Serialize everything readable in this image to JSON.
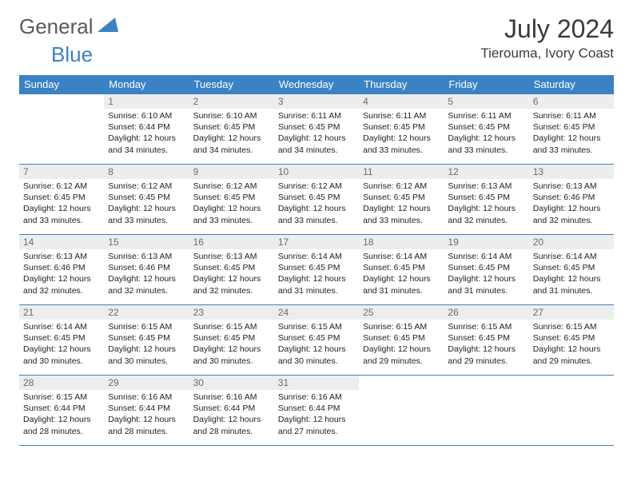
{
  "logo": {
    "general": "General",
    "blue": "Blue"
  },
  "title": "July 2024",
  "location": "Tierouma, Ivory Coast",
  "colors": {
    "header_bg": "#3b82c4",
    "header_text": "#ffffff",
    "daynum_bg": "#eceeee",
    "daynum_text": "#6a6a6a",
    "border": "#3b82c4",
    "body_text": "#222222",
    "logo_gray": "#5a5a5a",
    "logo_blue": "#3b82c4"
  },
  "weekdays": [
    "Sunday",
    "Monday",
    "Tuesday",
    "Wednesday",
    "Thursday",
    "Friday",
    "Saturday"
  ],
  "start_offset": 1,
  "days": [
    {
      "n": 1,
      "sr": "6:10 AM",
      "ss": "6:44 PM",
      "dl": "12 hours and 34 minutes."
    },
    {
      "n": 2,
      "sr": "6:10 AM",
      "ss": "6:45 PM",
      "dl": "12 hours and 34 minutes."
    },
    {
      "n": 3,
      "sr": "6:11 AM",
      "ss": "6:45 PM",
      "dl": "12 hours and 34 minutes."
    },
    {
      "n": 4,
      "sr": "6:11 AM",
      "ss": "6:45 PM",
      "dl": "12 hours and 33 minutes."
    },
    {
      "n": 5,
      "sr": "6:11 AM",
      "ss": "6:45 PM",
      "dl": "12 hours and 33 minutes."
    },
    {
      "n": 6,
      "sr": "6:11 AM",
      "ss": "6:45 PM",
      "dl": "12 hours and 33 minutes."
    },
    {
      "n": 7,
      "sr": "6:12 AM",
      "ss": "6:45 PM",
      "dl": "12 hours and 33 minutes."
    },
    {
      "n": 8,
      "sr": "6:12 AM",
      "ss": "6:45 PM",
      "dl": "12 hours and 33 minutes."
    },
    {
      "n": 9,
      "sr": "6:12 AM",
      "ss": "6:45 PM",
      "dl": "12 hours and 33 minutes."
    },
    {
      "n": 10,
      "sr": "6:12 AM",
      "ss": "6:45 PM",
      "dl": "12 hours and 33 minutes."
    },
    {
      "n": 11,
      "sr": "6:12 AM",
      "ss": "6:45 PM",
      "dl": "12 hours and 33 minutes."
    },
    {
      "n": 12,
      "sr": "6:13 AM",
      "ss": "6:45 PM",
      "dl": "12 hours and 32 minutes."
    },
    {
      "n": 13,
      "sr": "6:13 AM",
      "ss": "6:46 PM",
      "dl": "12 hours and 32 minutes."
    },
    {
      "n": 14,
      "sr": "6:13 AM",
      "ss": "6:46 PM",
      "dl": "12 hours and 32 minutes."
    },
    {
      "n": 15,
      "sr": "6:13 AM",
      "ss": "6:46 PM",
      "dl": "12 hours and 32 minutes."
    },
    {
      "n": 16,
      "sr": "6:13 AM",
      "ss": "6:45 PM",
      "dl": "12 hours and 32 minutes."
    },
    {
      "n": 17,
      "sr": "6:14 AM",
      "ss": "6:45 PM",
      "dl": "12 hours and 31 minutes."
    },
    {
      "n": 18,
      "sr": "6:14 AM",
      "ss": "6:45 PM",
      "dl": "12 hours and 31 minutes."
    },
    {
      "n": 19,
      "sr": "6:14 AM",
      "ss": "6:45 PM",
      "dl": "12 hours and 31 minutes."
    },
    {
      "n": 20,
      "sr": "6:14 AM",
      "ss": "6:45 PM",
      "dl": "12 hours and 31 minutes."
    },
    {
      "n": 21,
      "sr": "6:14 AM",
      "ss": "6:45 PM",
      "dl": "12 hours and 30 minutes."
    },
    {
      "n": 22,
      "sr": "6:15 AM",
      "ss": "6:45 PM",
      "dl": "12 hours and 30 minutes."
    },
    {
      "n": 23,
      "sr": "6:15 AM",
      "ss": "6:45 PM",
      "dl": "12 hours and 30 minutes."
    },
    {
      "n": 24,
      "sr": "6:15 AM",
      "ss": "6:45 PM",
      "dl": "12 hours and 30 minutes."
    },
    {
      "n": 25,
      "sr": "6:15 AM",
      "ss": "6:45 PM",
      "dl": "12 hours and 29 minutes."
    },
    {
      "n": 26,
      "sr": "6:15 AM",
      "ss": "6:45 PM",
      "dl": "12 hours and 29 minutes."
    },
    {
      "n": 27,
      "sr": "6:15 AM",
      "ss": "6:45 PM",
      "dl": "12 hours and 29 minutes."
    },
    {
      "n": 28,
      "sr": "6:15 AM",
      "ss": "6:44 PM",
      "dl": "12 hours and 28 minutes."
    },
    {
      "n": 29,
      "sr": "6:16 AM",
      "ss": "6:44 PM",
      "dl": "12 hours and 28 minutes."
    },
    {
      "n": 30,
      "sr": "6:16 AM",
      "ss": "6:44 PM",
      "dl": "12 hours and 28 minutes."
    },
    {
      "n": 31,
      "sr": "6:16 AM",
      "ss": "6:44 PM",
      "dl": "12 hours and 27 minutes."
    }
  ],
  "labels": {
    "sunrise": "Sunrise:",
    "sunset": "Sunset:",
    "daylight": "Daylight:"
  }
}
